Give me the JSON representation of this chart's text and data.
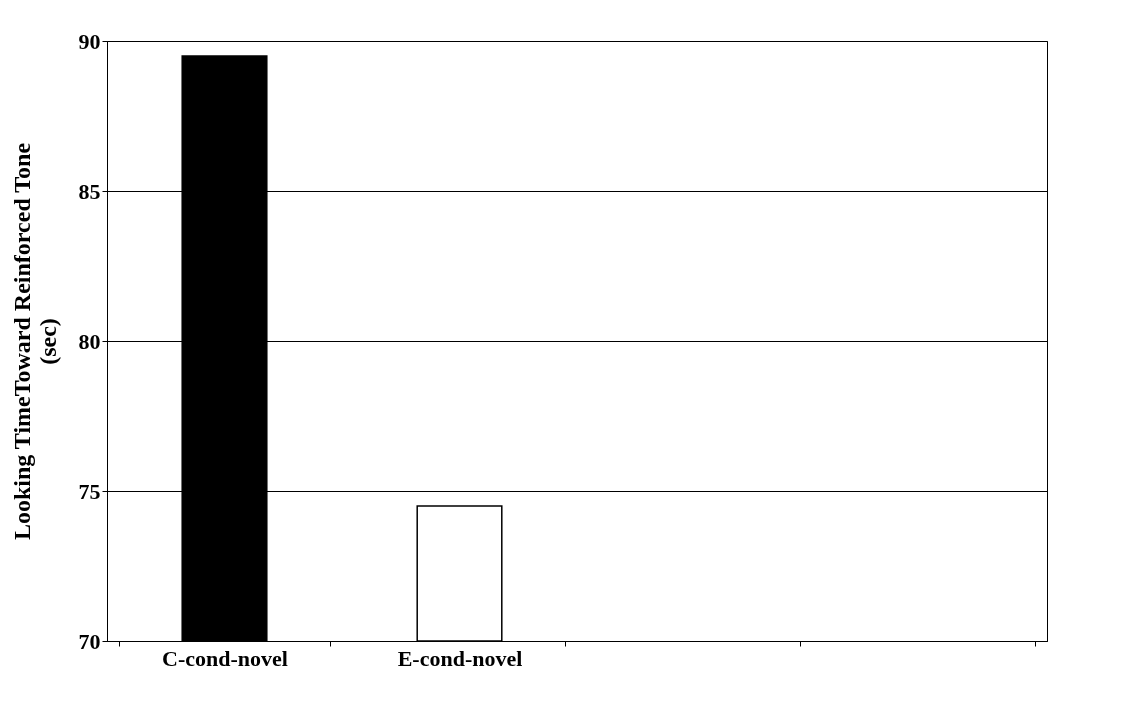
{
  "chart_data": {
    "type": "bar",
    "ylabel": "Looking TimeToward Reinforced Tone\n(sec)",
    "categories": [
      "C-cond-novel",
      "E-cond-novel",
      null,
      null
    ],
    "values": [
      89.5,
      74.5,
      null,
      null
    ],
    "colors": [
      "#000000",
      "#ffffff",
      "#ffffff",
      "#ffffff"
    ],
    "ylim": [
      70,
      90
    ],
    "yticks": [
      70,
      75,
      80,
      85,
      90
    ],
    "grid": "y",
    "legend": false
  }
}
